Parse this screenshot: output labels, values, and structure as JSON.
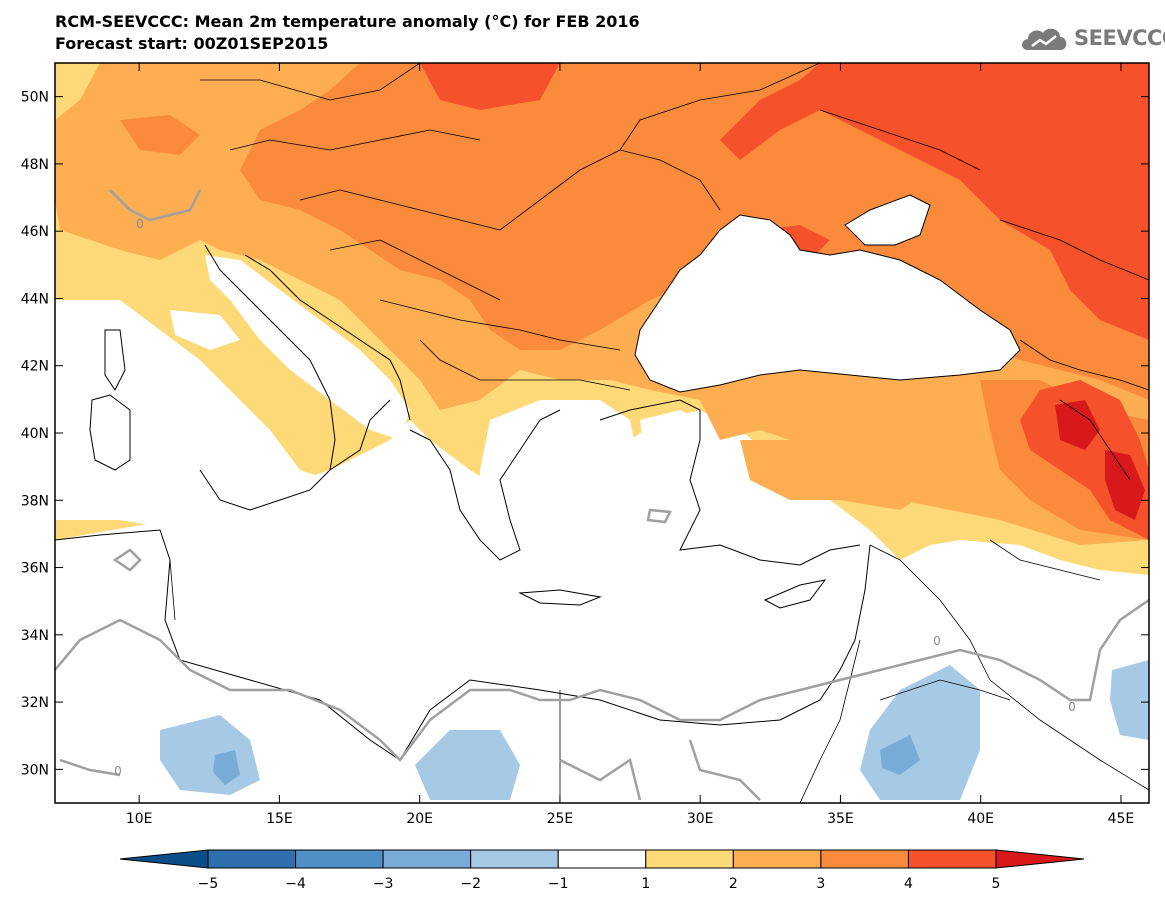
{
  "header": {
    "title": "RCM-SEEVCCC: Mean 2m temperature anomaly (°C) for FEB 2016",
    "subtitle": "Forecast start: 00Z01SEP2015"
  },
  "logo": {
    "text": "SEEVCCC",
    "icon": "cloud-logo-icon"
  },
  "map": {
    "lon_range": [
      7,
      46
    ],
    "lat_range": [
      29,
      51
    ],
    "lat_ticks": [
      "50N",
      "48N",
      "46N",
      "44N",
      "42N",
      "40N",
      "38N",
      "36N",
      "34N",
      "32N",
      "30N"
    ],
    "lon_ticks": [
      "10E",
      "15E",
      "20E",
      "25E",
      "30E",
      "35E",
      "40E",
      "45E"
    ],
    "contour_labels": [
      "0",
      "0",
      "0",
      "0"
    ]
  },
  "colorbar": {
    "labels": [
      "−5",
      "−4",
      "−3",
      "−2",
      "−1",
      "1",
      "2",
      "3",
      "4",
      "5"
    ],
    "colors": [
      "#0b4f8a",
      "#2f6fad",
      "#4f8fc6",
      "#78abd6",
      "#a6cae6",
      "#ffffff",
      "#fed977",
      "#fdae53",
      "#fb8b3c",
      "#f5522c",
      "#d7191c"
    ]
  }
}
